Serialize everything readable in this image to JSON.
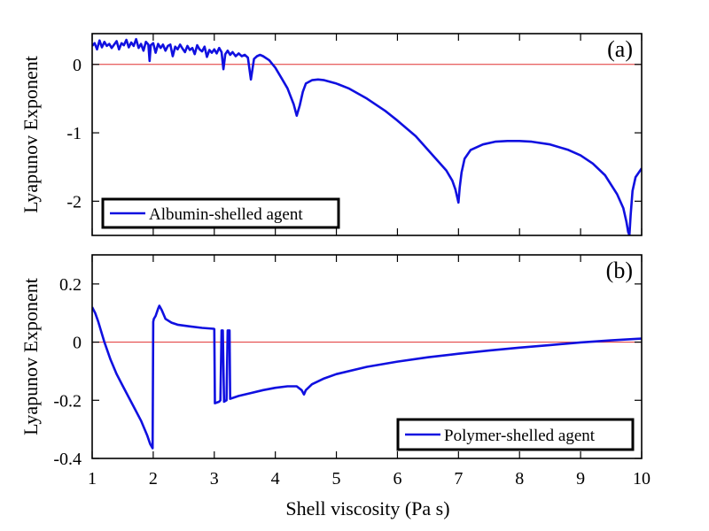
{
  "figure": {
    "xlabel": "Shell viscosity (Pa s)"
  },
  "chart_data": [
    {
      "type": "line",
      "panel_label": "(a)",
      "ylabel": "Lyapunov Exponent",
      "xlim": [
        1,
        10
      ],
      "ylim": [
        -2.5,
        0.45
      ],
      "xticks": [
        1,
        2,
        3,
        4,
        5,
        6,
        7,
        8,
        9,
        10
      ],
      "yticks": [
        -2,
        -1,
        0
      ],
      "show_x_tick_labels": false,
      "grid": false,
      "reference_line": {
        "y": 0,
        "color": "#e03030"
      },
      "legend": {
        "position": "bottom-left",
        "entries": [
          "Albumin-shelled agent"
        ]
      },
      "series": [
        {
          "name": "Albumin-shelled agent",
          "color": "#1010e0",
          "x": [
            1.0,
            1.04,
            1.08,
            1.12,
            1.16,
            1.2,
            1.24,
            1.28,
            1.32,
            1.36,
            1.4,
            1.44,
            1.48,
            1.52,
            1.56,
            1.6,
            1.64,
            1.68,
            1.72,
            1.76,
            1.8,
            1.84,
            1.88,
            1.92,
            1.94,
            1.96,
            2.0,
            2.04,
            2.08,
            2.12,
            2.16,
            2.2,
            2.24,
            2.28,
            2.32,
            2.36,
            2.4,
            2.44,
            2.48,
            2.52,
            2.56,
            2.6,
            2.64,
            2.68,
            2.72,
            2.76,
            2.8,
            2.84,
            2.88,
            2.92,
            2.96,
            3.0,
            3.04,
            3.08,
            3.12,
            3.15,
            3.18,
            3.22,
            3.26,
            3.3,
            3.35,
            3.4,
            3.45,
            3.5,
            3.55,
            3.6,
            3.65,
            3.7,
            3.75,
            3.8,
            3.9,
            4.0,
            4.1,
            4.2,
            4.3,
            4.35,
            4.4,
            4.45,
            4.5,
            4.6,
            4.7,
            4.8,
            5.0,
            5.2,
            5.5,
            5.8,
            6.0,
            6.3,
            6.6,
            6.8,
            6.9,
            6.95,
            7.0,
            7.02,
            7.05,
            7.1,
            7.2,
            7.4,
            7.6,
            7.8,
            8.0,
            8.2,
            8.5,
            8.8,
            9.0,
            9.2,
            9.4,
            9.6,
            9.7,
            9.75,
            9.78,
            9.8,
            9.82,
            9.85,
            9.9,
            10.0
          ],
          "y": [
            0.27,
            0.31,
            0.22,
            0.35,
            0.25,
            0.33,
            0.27,
            0.3,
            0.24,
            0.29,
            0.34,
            0.22,
            0.31,
            0.28,
            0.36,
            0.25,
            0.32,
            0.27,
            0.37,
            0.24,
            0.3,
            0.2,
            0.33,
            0.29,
            0.05,
            0.28,
            0.31,
            0.17,
            0.3,
            0.24,
            0.29,
            0.2,
            0.27,
            0.29,
            0.12,
            0.26,
            0.22,
            0.29,
            0.23,
            0.18,
            0.27,
            0.21,
            0.24,
            0.15,
            0.28,
            0.22,
            0.19,
            0.26,
            0.11,
            0.21,
            0.17,
            0.22,
            0.16,
            0.24,
            0.18,
            -0.07,
            0.15,
            0.2,
            0.14,
            0.18,
            0.12,
            0.16,
            0.12,
            0.14,
            0.1,
            -0.22,
            0.08,
            0.12,
            0.14,
            0.12,
            0.06,
            -0.05,
            -0.2,
            -0.35,
            -0.58,
            -0.75,
            -0.6,
            -0.4,
            -0.28,
            -0.23,
            -0.22,
            -0.23,
            -0.28,
            -0.35,
            -0.5,
            -0.68,
            -0.82,
            -1.05,
            -1.35,
            -1.55,
            -1.7,
            -1.83,
            -2.02,
            -1.8,
            -1.58,
            -1.38,
            -1.25,
            -1.17,
            -1.13,
            -1.12,
            -1.12,
            -1.13,
            -1.17,
            -1.25,
            -1.33,
            -1.45,
            -1.62,
            -1.9,
            -2.1,
            -2.3,
            -2.45,
            -2.5,
            -2.2,
            -1.85,
            -1.65,
            -1.52
          ]
        }
      ]
    },
    {
      "type": "line",
      "panel_label": "(b)",
      "ylabel": "Lyapunov Exponent",
      "xlim": [
        1,
        10
      ],
      "ylim": [
        -0.4,
        0.3
      ],
      "xticks": [
        1,
        2,
        3,
        4,
        5,
        6,
        7,
        8,
        9,
        10
      ],
      "yticks": [
        -0.4,
        -0.2,
        0,
        0.2
      ],
      "ytick_labels": [
        "-0.4",
        "-0.2",
        "0",
        "0.2"
      ],
      "show_x_tick_labels": true,
      "grid": false,
      "reference_line": {
        "y": 0,
        "color": "#e03030"
      },
      "legend": {
        "position": "bottom-right",
        "entries": [
          "Polymer-shelled agent"
        ]
      },
      "series": [
        {
          "name": "Polymer-shelled agent",
          "color": "#1010e0",
          "x": [
            1.0,
            1.05,
            1.1,
            1.2,
            1.3,
            1.4,
            1.5,
            1.6,
            1.7,
            1.8,
            1.9,
            1.95,
            1.99,
            2.0,
            2.01,
            2.04,
            2.08,
            2.1,
            2.14,
            2.2,
            2.3,
            2.4,
            2.6,
            2.8,
            2.99,
            3.0,
            3.01,
            3.08,
            3.1,
            3.12,
            3.14,
            3.16,
            3.2,
            3.22,
            3.25,
            3.26,
            3.4,
            3.6,
            3.8,
            4.0,
            4.2,
            4.35,
            4.43,
            4.47,
            4.5,
            4.6,
            4.8,
            5.0,
            5.5,
            6.0,
            6.5,
            7.0,
            7.5,
            8.0,
            8.5,
            9.0,
            9.5,
            10.0
          ],
          "y": [
            0.12,
            0.1,
            0.07,
            0.0,
            -0.06,
            -0.11,
            -0.15,
            -0.19,
            -0.23,
            -0.27,
            -0.32,
            -0.35,
            -0.365,
            0.07,
            0.08,
            0.09,
            0.115,
            0.125,
            0.11,
            0.08,
            0.067,
            0.06,
            0.054,
            0.049,
            0.046,
            0.045,
            -0.21,
            -0.205,
            -0.2,
            0.04,
            0.04,
            -0.205,
            -0.2,
            0.04,
            0.04,
            -0.195,
            -0.185,
            -0.175,
            -0.165,
            -0.157,
            -0.152,
            -0.152,
            -0.165,
            -0.18,
            -0.165,
            -0.145,
            -0.125,
            -0.11,
            -0.085,
            -0.067,
            -0.052,
            -0.04,
            -0.029,
            -0.019,
            -0.01,
            -0.001,
            0.006,
            0.012
          ]
        }
      ]
    }
  ]
}
